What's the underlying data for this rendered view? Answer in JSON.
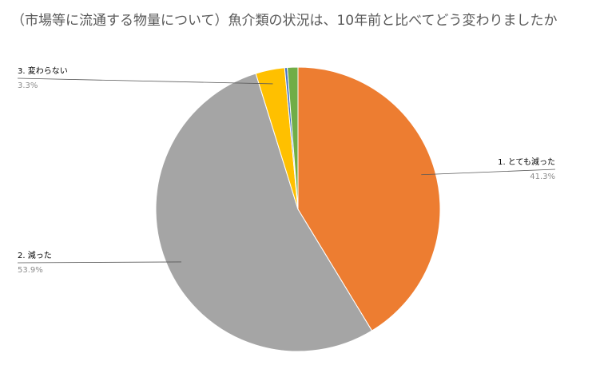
{
  "chart_data": {
    "type": "pie",
    "title": "（市場等に流通する物量について）魚介類の状況は、10年前と比べてどう変わりましたか",
    "categories": [
      "1. とても減った",
      "2. 減った",
      "3. 変わらない",
      null,
      null
    ],
    "values": [
      41.3,
      53.9,
      3.3,
      0.3,
      1.2
    ],
    "value_labels": [
      "41.3%",
      "53.9%",
      "3.3%",
      null,
      null
    ],
    "colors": [
      "#ed7d31",
      "#a5a5a5",
      "#ffc000",
      "#4472c4",
      "#70ad47"
    ]
  }
}
